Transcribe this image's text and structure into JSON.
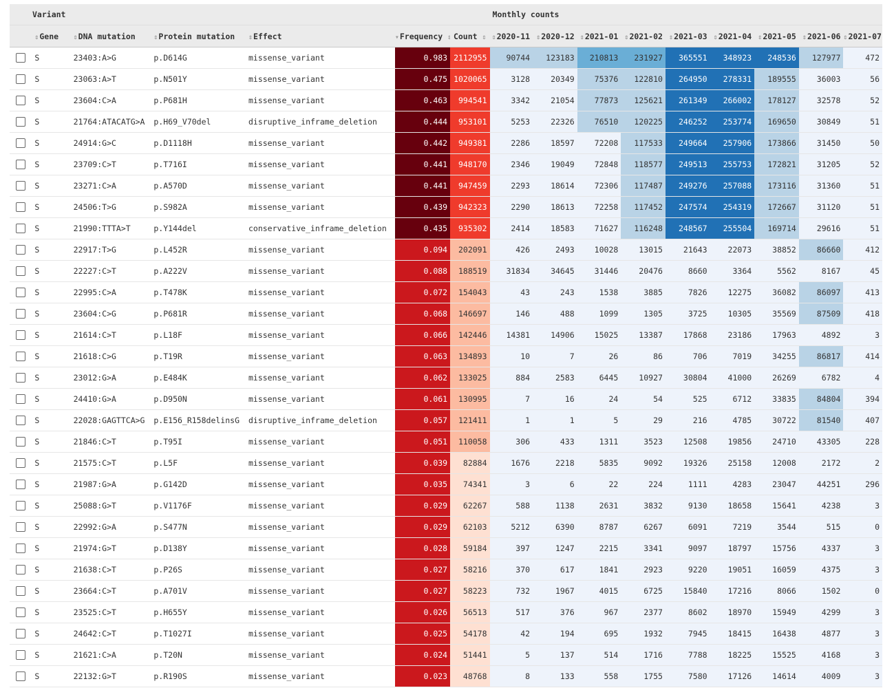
{
  "group_headers": {
    "variant": "Variant",
    "monthly": "Monthly counts"
  },
  "columns": {
    "gene": "Gene",
    "dna": "DNA mutation",
    "protein": "Protein mutation",
    "effect": "Effect",
    "frequency": "Frequency",
    "count": "Count",
    "months": [
      "2020-11",
      "2020-12",
      "2021-01",
      "2021-02",
      "2021-03",
      "2021-04",
      "2021-05",
      "2021-06",
      "2021-07"
    ]
  },
  "sort_glyphs": {
    "both": "⇕",
    "desc": "▾",
    "after": "⇕"
  },
  "colors": {
    "header_bg": "#ebebeb",
    "freq_dark": "#67000d",
    "freq_red": "#cb181d",
    "count_red": "#ef3b2c",
    "count_salmon": "#fcbba1",
    "count_light": "#fee0d2",
    "month_lightest": "#eef3fb",
    "month_light": "#b9d3e6",
    "month_mid": "#6aaed6",
    "month_dark": "#2171b5"
  },
  "rows": [
    {
      "gene": "S",
      "dna": "23403:A>G",
      "protein": "p.D614G",
      "effect": "missense_variant",
      "freq": "0.983",
      "count": "2112955",
      "months": [
        "90744",
        "123183",
        "210813",
        "231927",
        "365551",
        "348923",
        "248536",
        "127977",
        "472"
      ]
    },
    {
      "gene": "S",
      "dna": "23063:A>T",
      "protein": "p.N501Y",
      "effect": "missense_variant",
      "freq": "0.475",
      "count": "1020065",
      "months": [
        "3128",
        "20349",
        "75376",
        "122810",
        "264950",
        "278331",
        "189555",
        "36003",
        "56"
      ]
    },
    {
      "gene": "S",
      "dna": "23604:C>A",
      "protein": "p.P681H",
      "effect": "missense_variant",
      "freq": "0.463",
      "count": "994541",
      "months": [
        "3342",
        "21054",
        "77873",
        "125621",
        "261349",
        "266002",
        "178127",
        "32578",
        "52"
      ]
    },
    {
      "gene": "S",
      "dna": "21764:ATACATG>A",
      "protein": "p.H69_V70del",
      "effect": "disruptive_inframe_deletion",
      "freq": "0.444",
      "count": "953101",
      "months": [
        "5253",
        "22326",
        "76510",
        "120225",
        "246252",
        "253774",
        "169650",
        "30849",
        "51"
      ]
    },
    {
      "gene": "S",
      "dna": "24914:G>C",
      "protein": "p.D1118H",
      "effect": "missense_variant",
      "freq": "0.442",
      "count": "949381",
      "months": [
        "2286",
        "18597",
        "72208",
        "117533",
        "249664",
        "257906",
        "173866",
        "31450",
        "50"
      ]
    },
    {
      "gene": "S",
      "dna": "23709:C>T",
      "protein": "p.T716I",
      "effect": "missense_variant",
      "freq": "0.441",
      "count": "948170",
      "months": [
        "2346",
        "19049",
        "72848",
        "118577",
        "249513",
        "255753",
        "172821",
        "31205",
        "52"
      ]
    },
    {
      "gene": "S",
      "dna": "23271:C>A",
      "protein": "p.A570D",
      "effect": "missense_variant",
      "freq": "0.441",
      "count": "947459",
      "months": [
        "2293",
        "18614",
        "72306",
        "117487",
        "249276",
        "257088",
        "173116",
        "31360",
        "51"
      ]
    },
    {
      "gene": "S",
      "dna": "24506:T>G",
      "protein": "p.S982A",
      "effect": "missense_variant",
      "freq": "0.439",
      "count": "942323",
      "months": [
        "2290",
        "18613",
        "72258",
        "117452",
        "247574",
        "254319",
        "172667",
        "31120",
        "51"
      ]
    },
    {
      "gene": "S",
      "dna": "21990:TTTA>T",
      "protein": "p.Y144del",
      "effect": "conservative_inframe_deletion",
      "freq": "0.435",
      "count": "935302",
      "months": [
        "2414",
        "18583",
        "71627",
        "116248",
        "248567",
        "255504",
        "169714",
        "29616",
        "51"
      ]
    },
    {
      "gene": "S",
      "dna": "22917:T>G",
      "protein": "p.L452R",
      "effect": "missense_variant",
      "freq": "0.094",
      "count": "202091",
      "months": [
        "426",
        "2493",
        "10028",
        "13015",
        "21643",
        "22073",
        "38852",
        "86660",
        "412"
      ]
    },
    {
      "gene": "S",
      "dna": "22227:C>T",
      "protein": "p.A222V",
      "effect": "missense_variant",
      "freq": "0.088",
      "count": "188519",
      "months": [
        "31834",
        "34645",
        "31446",
        "20476",
        "8660",
        "3364",
        "5562",
        "8167",
        "45"
      ]
    },
    {
      "gene": "S",
      "dna": "22995:C>A",
      "protein": "p.T478K",
      "effect": "missense_variant",
      "freq": "0.072",
      "count": "154043",
      "months": [
        "43",
        "243",
        "1538",
        "3885",
        "7826",
        "12275",
        "36082",
        "86097",
        "413"
      ]
    },
    {
      "gene": "S",
      "dna": "23604:C>G",
      "protein": "p.P681R",
      "effect": "missense_variant",
      "freq": "0.068",
      "count": "146697",
      "months": [
        "146",
        "488",
        "1099",
        "1305",
        "3725",
        "10305",
        "35569",
        "87509",
        "418"
      ]
    },
    {
      "gene": "S",
      "dna": "21614:C>T",
      "protein": "p.L18F",
      "effect": "missense_variant",
      "freq": "0.066",
      "count": "142446",
      "months": [
        "14381",
        "14906",
        "15025",
        "13387",
        "17868",
        "23186",
        "17963",
        "4892",
        "3"
      ]
    },
    {
      "gene": "S",
      "dna": "21618:C>G",
      "protein": "p.T19R",
      "effect": "missense_variant",
      "freq": "0.063",
      "count": "134893",
      "months": [
        "10",
        "7",
        "26",
        "86",
        "706",
        "7019",
        "34255",
        "86817",
        "414"
      ]
    },
    {
      "gene": "S",
      "dna": "23012:G>A",
      "protein": "p.E484K",
      "effect": "missense_variant",
      "freq": "0.062",
      "count": "133025",
      "months": [
        "884",
        "2583",
        "6445",
        "10927",
        "30804",
        "41000",
        "26269",
        "6782",
        "4"
      ]
    },
    {
      "gene": "S",
      "dna": "24410:G>A",
      "protein": "p.D950N",
      "effect": "missense_variant",
      "freq": "0.061",
      "count": "130995",
      "months": [
        "7",
        "16",
        "24",
        "54",
        "525",
        "6712",
        "33835",
        "84804",
        "394"
      ]
    },
    {
      "gene": "S",
      "dna": "22028:GAGTTCA>G",
      "protein": "p.E156_R158delinsG",
      "effect": "disruptive_inframe_deletion",
      "freq": "0.057",
      "count": "121411",
      "months": [
        "1",
        "1",
        "5",
        "29",
        "216",
        "4785",
        "30722",
        "81540",
        "407"
      ]
    },
    {
      "gene": "S",
      "dna": "21846:C>T",
      "protein": "p.T95I",
      "effect": "missense_variant",
      "freq": "0.051",
      "count": "110058",
      "months": [
        "306",
        "433",
        "1311",
        "3523",
        "12508",
        "19856",
        "24710",
        "43305",
        "228"
      ]
    },
    {
      "gene": "S",
      "dna": "21575:C>T",
      "protein": "p.L5F",
      "effect": "missense_variant",
      "freq": "0.039",
      "count": "82884",
      "months": [
        "1676",
        "2218",
        "5835",
        "9092",
        "19326",
        "25158",
        "12008",
        "2172",
        "2"
      ]
    },
    {
      "gene": "S",
      "dna": "21987:G>A",
      "protein": "p.G142D",
      "effect": "missense_variant",
      "freq": "0.035",
      "count": "74341",
      "months": [
        "3",
        "6",
        "22",
        "224",
        "1111",
        "4283",
        "23047",
        "44251",
        "296"
      ]
    },
    {
      "gene": "S",
      "dna": "25088:G>T",
      "protein": "p.V1176F",
      "effect": "missense_variant",
      "freq": "0.029",
      "count": "62267",
      "months": [
        "588",
        "1138",
        "2631",
        "3832",
        "9130",
        "18658",
        "15641",
        "4238",
        "3"
      ]
    },
    {
      "gene": "S",
      "dna": "22992:G>A",
      "protein": "p.S477N",
      "effect": "missense_variant",
      "freq": "0.029",
      "count": "62103",
      "months": [
        "5212",
        "6390",
        "8787",
        "6267",
        "6091",
        "7219",
        "3544",
        "515",
        "0"
      ]
    },
    {
      "gene": "S",
      "dna": "21974:G>T",
      "protein": "p.D138Y",
      "effect": "missense_variant",
      "freq": "0.028",
      "count": "59184",
      "months": [
        "397",
        "1247",
        "2215",
        "3341",
        "9097",
        "18797",
        "15756",
        "4337",
        "3"
      ]
    },
    {
      "gene": "S",
      "dna": "21638:C>T",
      "protein": "p.P26S",
      "effect": "missense_variant",
      "freq": "0.027",
      "count": "58216",
      "months": [
        "370",
        "617",
        "1841",
        "2923",
        "9220",
        "19051",
        "16059",
        "4375",
        "3"
      ]
    },
    {
      "gene": "S",
      "dna": "23664:C>T",
      "protein": "p.A701V",
      "effect": "missense_variant",
      "freq": "0.027",
      "count": "58223",
      "months": [
        "732",
        "1967",
        "4015",
        "6725",
        "15840",
        "17216",
        "8066",
        "1502",
        "0"
      ]
    },
    {
      "gene": "S",
      "dna": "23525:C>T",
      "protein": "p.H655Y",
      "effect": "missense_variant",
      "freq": "0.026",
      "count": "56513",
      "months": [
        "517",
        "376",
        "967",
        "2377",
        "8602",
        "18970",
        "15949",
        "4299",
        "3"
      ]
    },
    {
      "gene": "S",
      "dna": "24642:C>T",
      "protein": "p.T1027I",
      "effect": "missense_variant",
      "freq": "0.025",
      "count": "54178",
      "months": [
        "42",
        "194",
        "695",
        "1932",
        "7945",
        "18415",
        "16438",
        "4877",
        "3"
      ]
    },
    {
      "gene": "S",
      "dna": "21621:C>A",
      "protein": "p.T20N",
      "effect": "missense_variant",
      "freq": "0.024",
      "count": "51441",
      "months": [
        "5",
        "137",
        "514",
        "1716",
        "7788",
        "18225",
        "15525",
        "4168",
        "3"
      ]
    },
    {
      "gene": "S",
      "dna": "22132:G>T",
      "protein": "p.R190S",
      "effect": "missense_variant",
      "freq": "0.023",
      "count": "48768",
      "months": [
        "8",
        "133",
        "558",
        "1755",
        "7580",
        "17126",
        "14614",
        "4009",
        "3"
      ]
    }
  ]
}
